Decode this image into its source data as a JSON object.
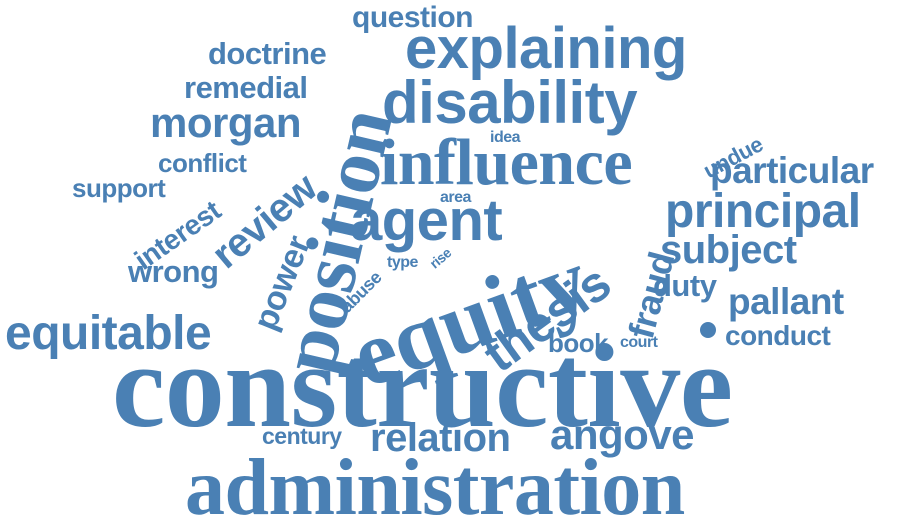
{
  "color": "#4a80b4",
  "words": [
    {
      "id": "question",
      "text": "question"
    },
    {
      "id": "doctrine",
      "text": "doctrine"
    },
    {
      "id": "explaining",
      "text": "explaining"
    },
    {
      "id": "remedial",
      "text": "remedial"
    },
    {
      "id": "disability",
      "text": "disability"
    },
    {
      "id": "morgan",
      "text": "morgan"
    },
    {
      "id": "position",
      "text": "position"
    },
    {
      "id": "undue",
      "text": "undue"
    },
    {
      "id": "idea",
      "text": "idea"
    },
    {
      "id": "conflict",
      "text": "conflict"
    },
    {
      "id": "influence",
      "text": "influence"
    },
    {
      "id": "particular",
      "text": "particular"
    },
    {
      "id": "support",
      "text": "support"
    },
    {
      "id": "review",
      "text": "review"
    },
    {
      "id": "interest",
      "text": "interest"
    },
    {
      "id": "area",
      "text": "area"
    },
    {
      "id": "agent",
      "text": "agent"
    },
    {
      "id": "principal",
      "text": "principal"
    },
    {
      "id": "power",
      "text": "power"
    },
    {
      "id": "fraud",
      "text": "fraud"
    },
    {
      "id": "subject",
      "text": "subject"
    },
    {
      "id": "wrong",
      "text": "wrong"
    },
    {
      "id": "abuse",
      "text": "abuse"
    },
    {
      "id": "type",
      "text": "type"
    },
    {
      "id": "rise",
      "text": "rise"
    },
    {
      "id": "equity",
      "text": "equity"
    },
    {
      "id": "duty",
      "text": "duty"
    },
    {
      "id": "thesis",
      "text": "thesis"
    },
    {
      "id": "pallant",
      "text": "pallant"
    },
    {
      "id": "equitable",
      "text": "equitable"
    },
    {
      "id": "book",
      "text": "book"
    },
    {
      "id": "court",
      "text": "court"
    },
    {
      "id": "conduct",
      "text": "conduct"
    },
    {
      "id": "constructive",
      "text": "constructive"
    },
    {
      "id": "century",
      "text": "century"
    },
    {
      "id": "relation",
      "text": "relation"
    },
    {
      "id": "angove",
      "text": "angove"
    },
    {
      "id": "administration",
      "text": "administration"
    }
  ]
}
